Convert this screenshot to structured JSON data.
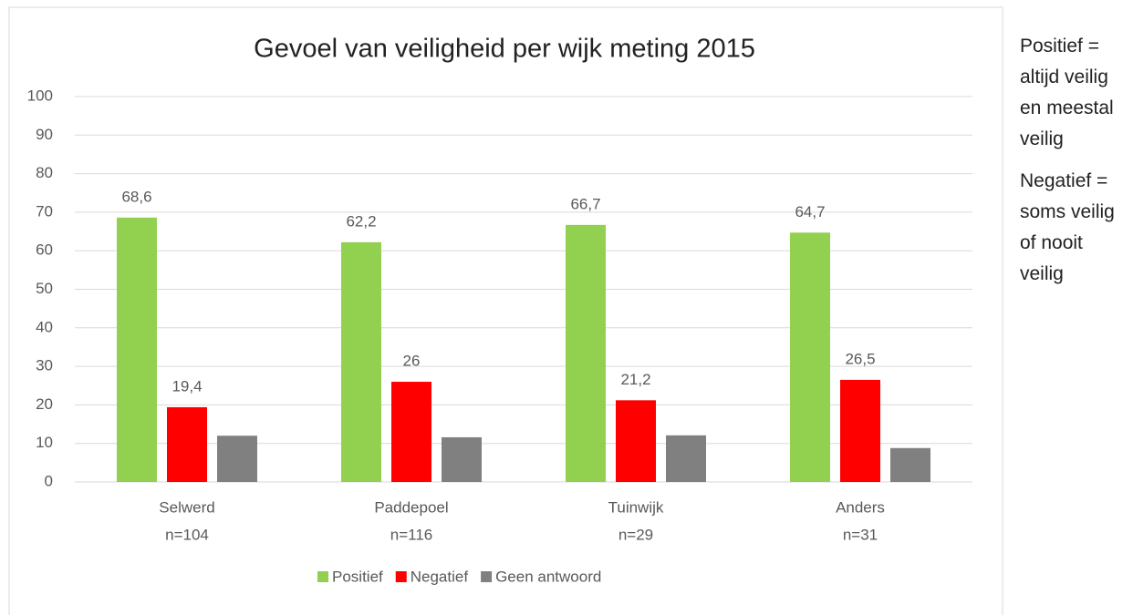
{
  "chart_data": {
    "type": "bar",
    "title": "Gevoel van veiligheid per wijk meting 2015",
    "categories": [
      [
        "Selwerd",
        "n=104"
      ],
      [
        "Paddepoel",
        "n=116"
      ],
      [
        "Tuinwijk",
        "n=29"
      ],
      [
        "Anders",
        "n=31"
      ]
    ],
    "series": [
      {
        "name": "Positief",
        "color": "#92d050",
        "values": [
          68.6,
          62.2,
          66.7,
          64.7
        ],
        "value_labels": [
          "68,6",
          "62,2",
          "66,7",
          "64,7"
        ]
      },
      {
        "name": "Negatief",
        "color": "#ff0000",
        "values": [
          19.4,
          26,
          21.2,
          26.5
        ],
        "value_labels": [
          "19,4",
          "26",
          "21,2",
          "26,5"
        ]
      },
      {
        "name": "Geen antwoord",
        "color": "#808080",
        "values": [
          12,
          11.6,
          12.1,
          8.8
        ]
      }
    ],
    "ylim": [
      0,
      100
    ],
    "yticks": [
      0,
      10,
      20,
      30,
      40,
      50,
      60,
      70,
      80,
      90,
      100
    ],
    "grid": true,
    "legend": "bottom"
  },
  "notes": [
    "Positief = altijd veilig en meestal veilig",
    "Negatief = soms veilig of nooit veilig"
  ]
}
